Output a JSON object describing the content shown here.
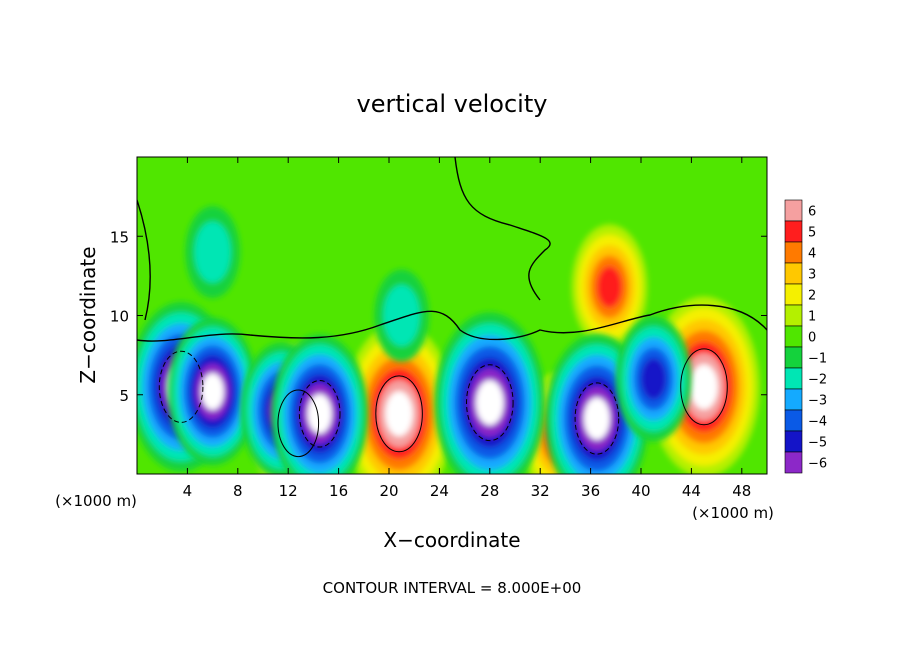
{
  "chart_data": {
    "type": "heatmap",
    "title": "vertical velocity",
    "xlabel": "X−coordinate",
    "ylabel": "Z−coordinate",
    "xlim": [
      0,
      50
    ],
    "ylim": [
      0,
      20
    ],
    "x_ticks": [
      4,
      8,
      12,
      16,
      20,
      24,
      28,
      32,
      36,
      40,
      44,
      48
    ],
    "y_ticks": [
      5,
      10,
      15
    ],
    "x_unit": "(×1000 m)",
    "footer": "CONTOUR INTERVAL = 8.000E+00",
    "colorbar": {
      "ticks": [
        "6",
        "5",
        "4",
        "3",
        "2",
        "1",
        "0",
        "−1",
        "−2",
        "−3",
        "−4",
        "−5",
        "−6"
      ],
      "colors": [
        "#f5a0a0",
        "#ff1e1e",
        "#ff7a00",
        "#ffc800",
        "#f5f000",
        "#b4f000",
        "#50e600",
        "#14d23c",
        "#00e6b4",
        "#14aaff",
        "#0a5ae6",
        "#1414c8",
        "#8c28c8"
      ]
    },
    "background_value": 0.5,
    "features": [
      {
        "kind": "updraft",
        "x": 12.8,
        "z": 3.2,
        "value": 8
      },
      {
        "kind": "updraft",
        "x": 20.8,
        "z": 3.8,
        "value": 10
      },
      {
        "kind": "updraft",
        "x": 33.5,
        "z": 2.5,
        "value": 5
      },
      {
        "kind": "updraft",
        "x": 37.5,
        "z": 11.8,
        "value": 5
      },
      {
        "kind": "updraft",
        "x": 45.0,
        "z": 5.5,
        "value": 10
      },
      {
        "kind": "downdraft",
        "x": 3.5,
        "z": 5.5,
        "value": -9
      },
      {
        "kind": "downdraft",
        "x": 6.0,
        "z": 5.2,
        "value": -7
      },
      {
        "kind": "downdraft",
        "x": 11.5,
        "z": 4.0,
        "value": -6
      },
      {
        "kind": "downdraft",
        "x": 14.5,
        "z": 3.8,
        "value": -8
      },
      {
        "kind": "downdraft",
        "x": 28.0,
        "z": 4.5,
        "value": -10
      },
      {
        "kind": "downdraft",
        "x": 36.5,
        "z": 3.5,
        "value": -9
      },
      {
        "kind": "downdraft",
        "x": 41.0,
        "z": 6.0,
        "value": -5
      },
      {
        "kind": "downdraft",
        "x": 6.0,
        "z": 14.0,
        "value": -2
      },
      {
        "kind": "downdraft",
        "x": 21.0,
        "z": 10.0,
        "value": -2
      }
    ]
  }
}
